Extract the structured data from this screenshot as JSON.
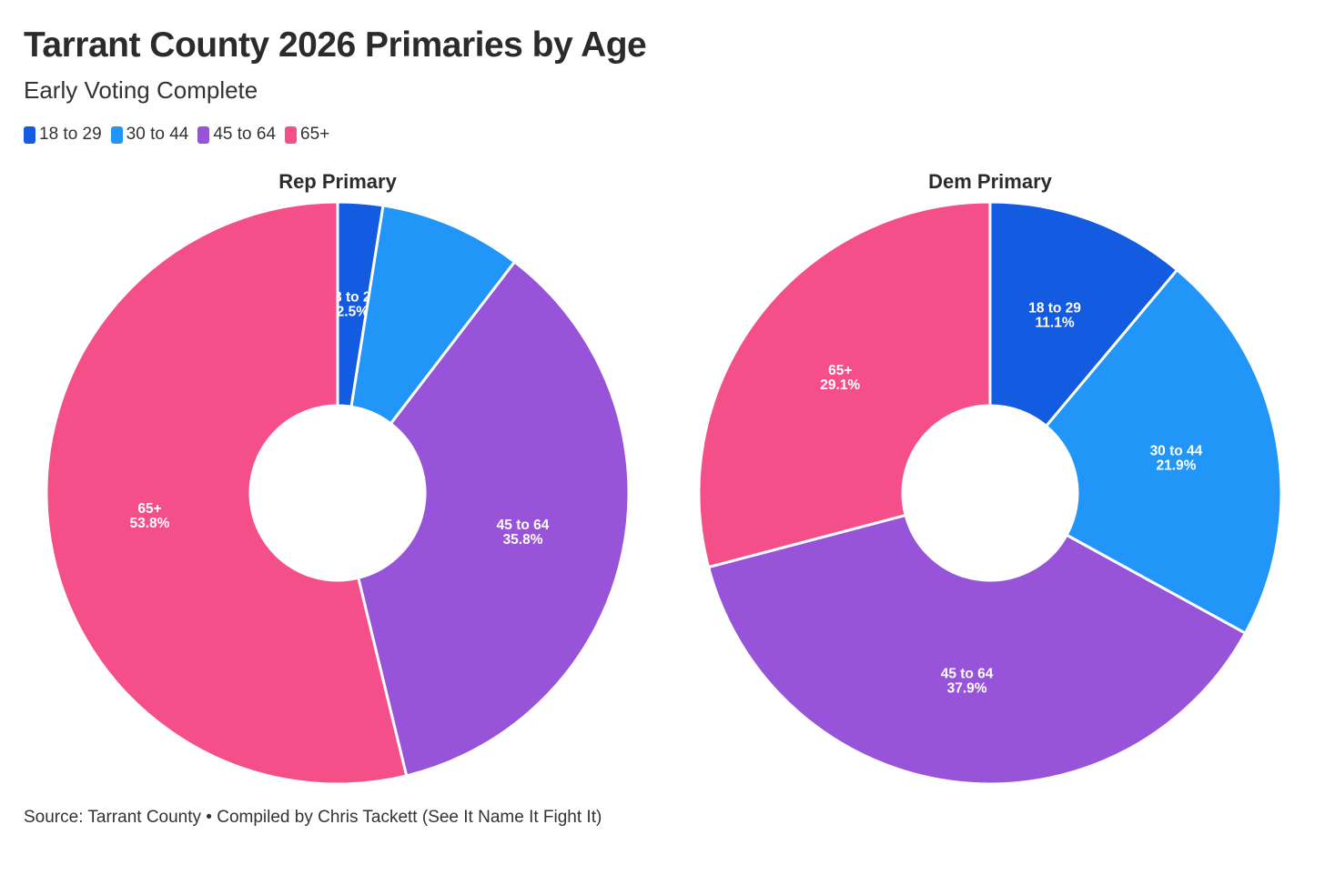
{
  "title": "Tarrant County 2026 Primaries by Age",
  "subtitle": "Early Voting Complete",
  "source": "Source: Tarrant County • Compiled by Chris Tackett (See It Name It Fight It)",
  "colors": {
    "18 to 29": "#135be0",
    "30 to 44": "#2196f8",
    "45 to 64": "#9754d8",
    "65+": "#f44f88"
  },
  "legend": [
    "18 to 29",
    "30 to 44",
    "45 to 64",
    "65+"
  ],
  "chart_data": [
    {
      "type": "pie",
      "title": "Rep Primary",
      "categories": [
        "18 to 29",
        "30 to 44",
        "45 to 64",
        "65+"
      ],
      "values": [
        2.5,
        7.9,
        35.8,
        53.8
      ],
      "labels": [
        "2.5%",
        null,
        "35.8%",
        "53.8%"
      ]
    },
    {
      "type": "pie",
      "title": "Dem Primary",
      "categories": [
        "18 to 29",
        "30 to 44",
        "45 to 64",
        "65+"
      ],
      "values": [
        11.1,
        21.9,
        37.9,
        29.1
      ],
      "labels": [
        "11.1%",
        "21.9%",
        "37.9%",
        "29.1%"
      ]
    }
  ]
}
